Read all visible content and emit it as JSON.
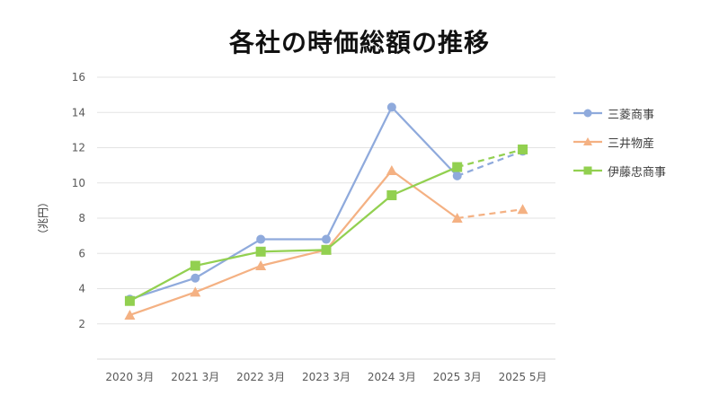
{
  "chart_data": {
    "type": "line",
    "title": "各社の時価総額の推移",
    "xlabel": "",
    "ylabel": "（兆円）",
    "ylim": [
      0,
      16
    ],
    "yticks": [
      2,
      4,
      6,
      8,
      10,
      12,
      14,
      16
    ],
    "grid": true,
    "legend_position": "right",
    "categories": [
      "2020 3月",
      "2021 3月",
      "2022 3月",
      "2023 3月",
      "2024 3月",
      "2025 3月",
      "2025 5月"
    ],
    "series": [
      {
        "name": "三菱商事",
        "color": "#8FAADC",
        "marker": "circle",
        "values": [
          3.4,
          4.6,
          6.8,
          6.8,
          14.3,
          10.4,
          11.8
        ],
        "dashed_from_index": 5
      },
      {
        "name": "三井物産",
        "color": "#F4B183",
        "marker": "triangle",
        "values": [
          2.5,
          3.8,
          5.3,
          6.2,
          10.7,
          8.0,
          8.5
        ],
        "dashed_from_index": 5
      },
      {
        "name": "伊藤忠商事",
        "color": "#92D050",
        "marker": "square",
        "values": [
          3.3,
          5.3,
          6.1,
          6.2,
          9.3,
          10.9,
          11.9
        ],
        "dashed_from_index": 5
      }
    ]
  }
}
